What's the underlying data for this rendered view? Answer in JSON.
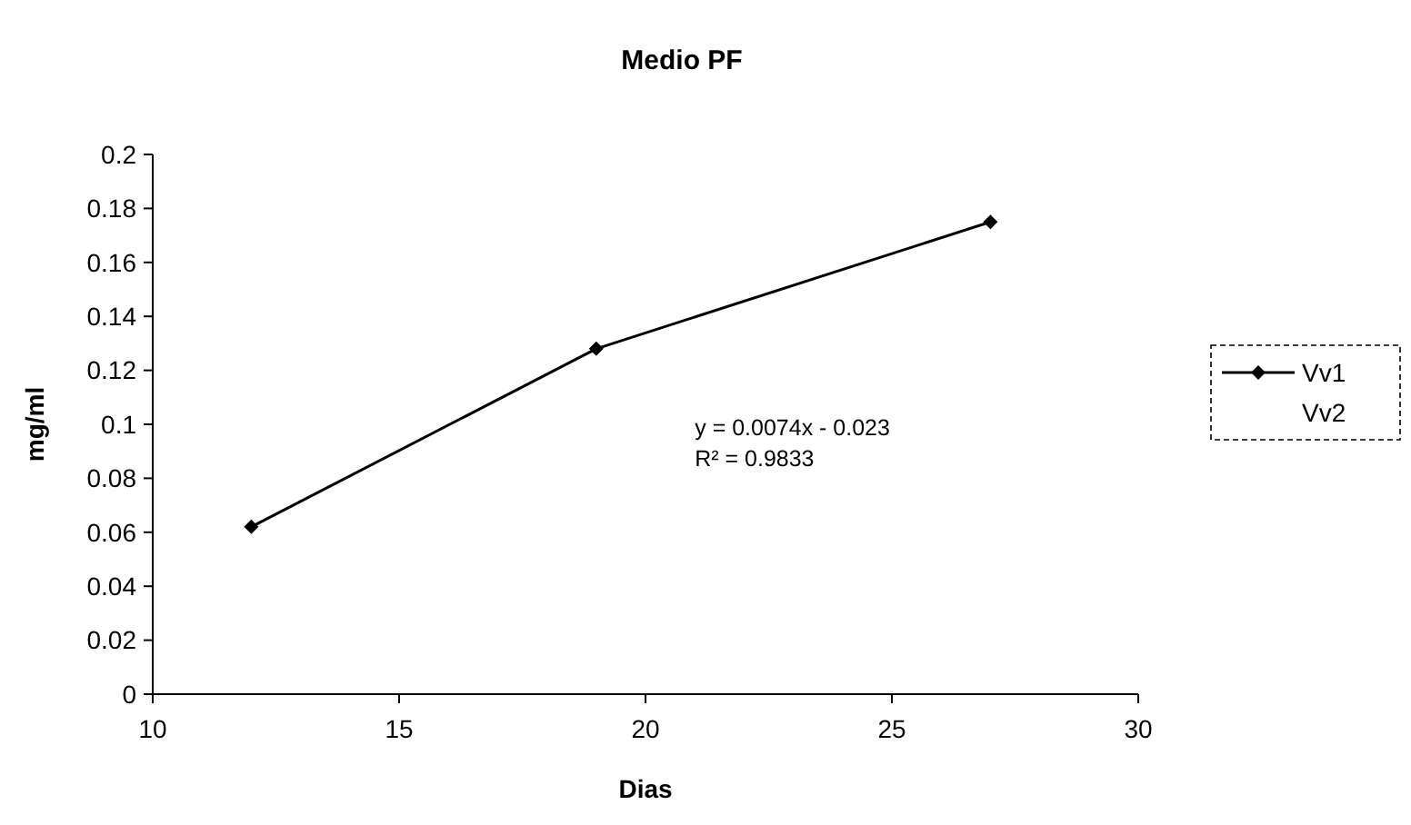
{
  "chart_data": {
    "type": "line",
    "title": "Medio PF",
    "xlabel": "Dias",
    "ylabel": "mg/ml",
    "xlim": [
      10,
      30
    ],
    "xticks": [
      10,
      15,
      20,
      25,
      30
    ],
    "ylim": [
      0,
      0.2
    ],
    "yticks": [
      0,
      0.02,
      0.04,
      0.06,
      0.08,
      0.1,
      0.12,
      0.14,
      0.16,
      0.18,
      {
        "value": 0.2,
        "label": "0.2"
      }
    ],
    "x": [
      12,
      19,
      27
    ],
    "series": [
      {
        "name": "Vv1",
        "color": "#000000",
        "values": [
          0.062,
          0.128,
          0.175
        ]
      },
      {
        "name": "Vv2",
        "values": [
          null,
          null,
          null
        ]
      }
    ],
    "marker": "diamond",
    "grid": false,
    "legend": "right",
    "annotations": [
      "y = 0.0074x - 0.023",
      "R² = 0.9833"
    ]
  }
}
